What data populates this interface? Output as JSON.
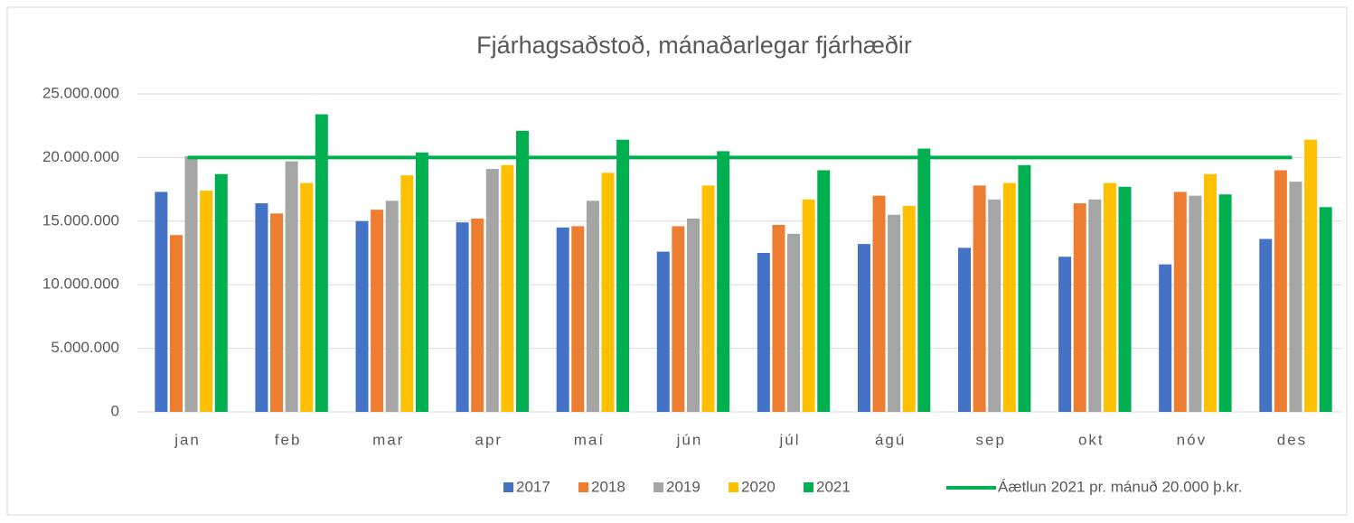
{
  "chart_data": {
    "type": "bar",
    "title": "Fjárhagsaðstoð, mánaðarlegar fjárhæðir",
    "categories": [
      "jan",
      "feb",
      "mar",
      "apr",
      "maí",
      "jún",
      "júl",
      "ágú",
      "sep",
      "okt",
      "nóv",
      "des"
    ],
    "series": [
      {
        "name": "2017",
        "color": "#4472c4",
        "values": [
          17300000,
          16400000,
          15000000,
          14900000,
          14500000,
          12600000,
          12500000,
          13200000,
          12900000,
          12200000,
          11600000,
          13600000
        ]
      },
      {
        "name": "2018",
        "color": "#ed7d31",
        "values": [
          13900000,
          15600000,
          15900000,
          15200000,
          14600000,
          14600000,
          14700000,
          17000000,
          17800000,
          16400000,
          17300000,
          19000000
        ]
      },
      {
        "name": "2019",
        "color": "#a5a5a5",
        "values": [
          20100000,
          19700000,
          16600000,
          19100000,
          16600000,
          15200000,
          14000000,
          15500000,
          16700000,
          16700000,
          17000000,
          18100000
        ]
      },
      {
        "name": "2020",
        "color": "#ffc000",
        "values": [
          17400000,
          18000000,
          18600000,
          19400000,
          18800000,
          17800000,
          16700000,
          16200000,
          18000000,
          18000000,
          18700000,
          21400000
        ]
      },
      {
        "name": "2021",
        "color": "#00b050",
        "values": [
          18700000,
          23400000,
          20400000,
          22100000,
          21400000,
          20500000,
          19000000,
          20700000,
          19400000,
          17700000,
          17100000,
          16100000
        ]
      },
      {
        "name": "Áætlun 2021 pr. mánuð 20.000 þ.kr.",
        "type": "line",
        "color": "#00b050",
        "values": [
          20000000,
          20000000,
          20000000,
          20000000,
          20000000,
          20000000,
          20000000,
          20000000,
          20000000,
          20000000,
          20000000,
          20000000
        ]
      }
    ],
    "ylim": [
      0,
      25000000
    ],
    "yticks": [
      0,
      {
        "value": 5000000,
        "label": "5.000.000"
      },
      {
        "value": 10000000,
        "label": "10.000.000"
      },
      {
        "value": 15000000,
        "label": "15.000.000"
      },
      {
        "value": 20000000,
        "label": "20.000.000"
      },
      {
        "value": 25000000,
        "label": "25.000.000"
      }
    ],
    "grid": true
  }
}
